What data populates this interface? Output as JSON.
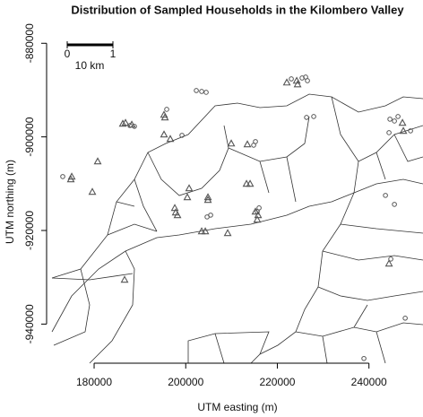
{
  "chart_data": {
    "type": "scatter",
    "title": "Distribution of Sampled Households in the Kilombero Valley",
    "x_label": "UTM easting (m)",
    "y_label": "UTM northing (m)",
    "xlim": [
      170800,
      251800
    ],
    "ylim": [
      -947400,
      -876500
    ],
    "xticks": [
      180000,
      200000,
      220000,
      240000
    ],
    "yticks": [
      -880000,
      -900000,
      -920000,
      -940000
    ],
    "scale_bar": {
      "start": "0",
      "end": "1",
      "length": "10 km"
    },
    "series": [
      {
        "marker": "triangle",
        "color": "#555555",
        "x": [
          175110,
          174910,
          180780,
          179610,
          186260,
          186850,
          188220,
          195260,
          195460,
          195260,
          196630,
          209940,
          213460,
          197810,
          197610,
          200350,
          200740,
          204850,
          204270,
          209160,
          203480,
          213270,
          214050,
          215220,
          215810,
          215610,
          222070,
          224420,
          224230,
          244380,
          247320,
          247510,
          186650,
          204850,
          198200
        ],
        "values": [
          -908480,
          -909060,
          -905230,
          -911740,
          -897180,
          -896990,
          -897370,
          -895270,
          -895840,
          -899480,
          -900440,
          -901400,
          -901590,
          -916140,
          -915180,
          -912890,
          -910970,
          -913460,
          -920160,
          -920550,
          -920160,
          -910010,
          -910010,
          -915950,
          -916720,
          -917670,
          -888370,
          -888760,
          -887990,
          -927060,
          -896990,
          -898710,
          -930510,
          -912890,
          -916720
        ]
      },
      {
        "marker": "circle",
        "color": "#555555",
        "x": [
          173150,
          187830,
          188800,
          202310,
          203480,
          204460,
          195850,
          199180,
          214830,
          215220,
          204660,
          205440,
          215610,
          216010,
          223050,
          225400,
          226180,
          226570,
          244580,
          245560,
          246340,
          249080,
          244380,
          243600,
          245560,
          244770,
          247910,
          238900,
          226380,
          227940
        ],
        "values": [
          -908480,
          -897570,
          -897760,
          -890100,
          -890290,
          -890480,
          -894120,
          -899670,
          -901780,
          -901010,
          -917100,
          -916720,
          -915950,
          -915180,
          -887610,
          -887420,
          -887220,
          -887990,
          -896220,
          -896610,
          -895650,
          -898710,
          -899100,
          -912500,
          -914420,
          -926100,
          -938740,
          -947360,
          -895840,
          -895650
        ]
      }
    ]
  }
}
